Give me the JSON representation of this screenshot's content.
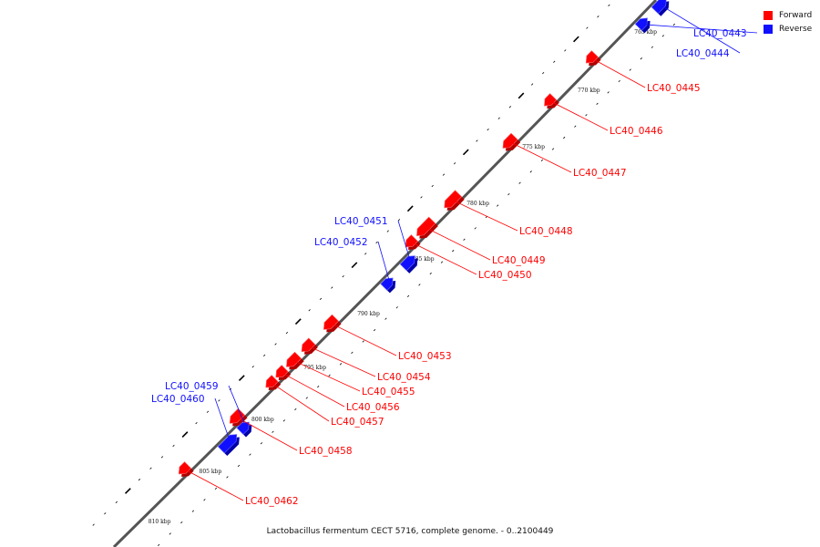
{
  "legend": {
    "forward_label": "Forward",
    "reverse_label": "Reverse",
    "forward_color": "#ff0000",
    "reverse_color": "#1010ff"
  },
  "caption": "Lactobacillus fermentum CECT 5716, complete genome. - 0..2100449",
  "scale_labels": [
    "765 kbp",
    "770 kbp",
    "775 kbp",
    "780 kbp",
    "785 kbp",
    "790 kbp",
    "795 kbp",
    "800 kbp",
    "805 kbp",
    "810 kbp"
  ],
  "genes": [
    {
      "id": "LC40_0443",
      "strand": "reverse"
    },
    {
      "id": "LC40_0444",
      "strand": "reverse"
    },
    {
      "id": "LC40_0445",
      "strand": "forward"
    },
    {
      "id": "LC40_0446",
      "strand": "forward"
    },
    {
      "id": "LC40_0447",
      "strand": "forward"
    },
    {
      "id": "LC40_0448",
      "strand": "forward"
    },
    {
      "id": "LC40_0449",
      "strand": "forward"
    },
    {
      "id": "LC40_0450",
      "strand": "forward"
    },
    {
      "id": "LC40_0451",
      "strand": "reverse"
    },
    {
      "id": "LC40_0452",
      "strand": "reverse"
    },
    {
      "id": "LC40_0453",
      "strand": "forward"
    },
    {
      "id": "LC40_0454",
      "strand": "forward"
    },
    {
      "id": "LC40_0455",
      "strand": "forward"
    },
    {
      "id": "LC40_0456",
      "strand": "forward"
    },
    {
      "id": "LC40_0457",
      "strand": "forward"
    },
    {
      "id": "LC40_0458",
      "strand": "forward"
    },
    {
      "id": "LC40_0459",
      "strand": "reverse"
    },
    {
      "id": "LC40_0460",
      "strand": "reverse"
    },
    {
      "id": "LC40_0462",
      "strand": "forward"
    }
  ]
}
